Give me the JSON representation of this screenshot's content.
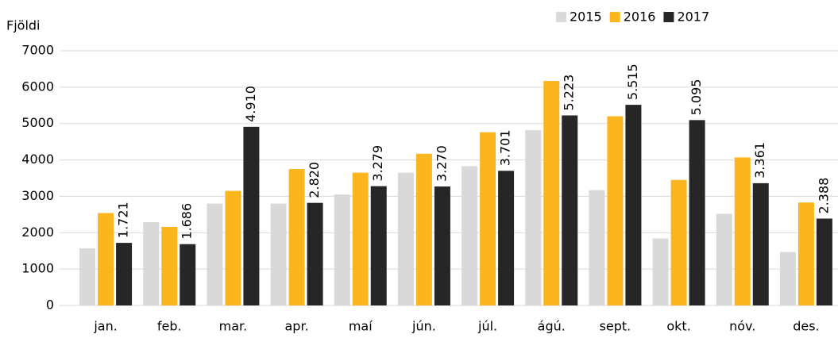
{
  "chart_data": {
    "type": "bar",
    "y_label": "Fjöldi",
    "categories": [
      "jan.",
      "feb.",
      "mar.",
      "apr.",
      "maí",
      "jún.",
      "júl.",
      "ágú.",
      "sept.",
      "okt.",
      "nóv.",
      "des."
    ],
    "series": [
      {
        "name": "2015",
        "color": "#d9d9d9",
        "values": [
          1570,
          2290,
          2800,
          2800,
          3050,
          3650,
          3830,
          4820,
          3170,
          1840,
          2520,
          1470
        ]
      },
      {
        "name": "2016",
        "color": "#fbb61f",
        "values": [
          2540,
          2160,
          3150,
          3750,
          3650,
          4170,
          4760,
          6170,
          5200,
          3450,
          4070,
          2830
        ]
      },
      {
        "name": "2017",
        "color": "#262626",
        "values": [
          1721,
          1686,
          4910,
          2820,
          3279,
          3270,
          3701,
          5223,
          5515,
          5095,
          3361,
          2388
        ],
        "value_labels": [
          "1.721",
          "1.686",
          "4.910",
          "2.820",
          "3.279",
          "3.270",
          "3.701",
          "5.223",
          "5.515",
          "5.095",
          "3.361",
          "2.388"
        ]
      }
    ],
    "ylim": [
      0,
      7000
    ],
    "yticks": [
      0,
      1000,
      2000,
      3000,
      4000,
      5000,
      6000,
      7000
    ],
    "grid": true,
    "legend": "top-right"
  }
}
